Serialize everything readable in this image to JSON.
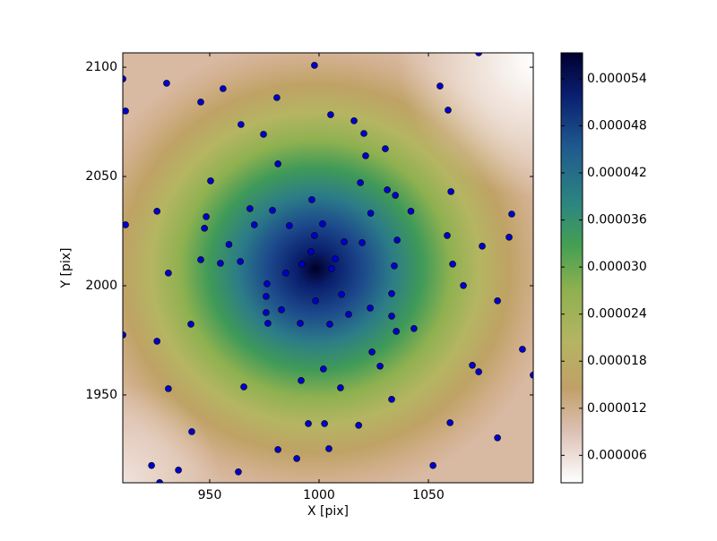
{
  "chart_data": {
    "type": "scatter",
    "xlabel": "X [pix]",
    "ylabel": "Y [pix]",
    "xlim": [
      910.25,
      1097.95
    ],
    "ylim": [
      1909.8,
      2106.6
    ],
    "xticks": [
      950,
      1000,
      1050
    ],
    "yticks": [
      1950,
      2000,
      2050,
      2100
    ],
    "clim": [
      2.5e-06,
      5.73e-05
    ],
    "colorbar_ticks": [
      {
        "value": 6e-06,
        "label": "0.000006"
      },
      {
        "value": 1.2e-05,
        "label": "0.000012"
      },
      {
        "value": 1.8e-05,
        "label": "0.000018"
      },
      {
        "value": 2.4e-05,
        "label": "0.000024"
      },
      {
        "value": 3e-05,
        "label": "0.000030"
      },
      {
        "value": 3.6e-05,
        "label": "0.000036"
      },
      {
        "value": 4.2e-05,
        "label": "0.000042"
      },
      {
        "value": 4.8e-05,
        "label": "0.000048"
      },
      {
        "value": 5.4e-05,
        "label": "0.000054"
      }
    ],
    "series": [
      {
        "color": "#0000cc",
        "x": [
          910.3,
          930.3,
          911.5,
          945.9,
          956.1,
          997.9,
          980.7,
          1073,
          1055.3,
          1059,
          1005.3,
          1016,
          964.3,
          974.6,
          1020.5,
          1030.3,
          1021.3,
          981.2,
          950.4,
          1018.9,
          1031.2,
          1034.9,
          1060.3,
          996.7,
          925.9,
          968.4,
          978.7,
          1023.6,
          1042,
          1088.1,
          948.4,
          911.5,
          970.4,
          986.4,
          1001.6,
          947.6,
          997.9,
          1058.6,
          1086.9,
          958.8,
          1011.5,
          1019.7,
          1035.7,
          1074.6,
          996.3,
          1007.4,
          945.9,
          964,
          954.9,
          1061.1,
          992.2,
          1034.4,
          1005.7,
          931.1,
          984.8,
          976.2,
          1066,
          1010.3,
          975.8,
          1033.2,
          998.4,
          1081.6,
          982.8,
          1023.4,
          975.8,
          1013.5,
          1033.2,
          941.4,
          976.6,
          991.4,
          1004.9,
          1043.4,
          1035.3,
          910.3,
          925.9,
          1093,
          1024.2,
          1070.1,
          1027.9,
          1002,
          1073,
          1097.9,
          991.8,
          1009.8,
          931.1,
          965.6,
          1033.2,
          995.1,
          1002.5,
          1018.1,
          1059.9,
          941.8,
          1081.6,
          981.2,
          1004.5,
          989.8,
          923.4,
          935.7,
          963.1,
          1052.1,
          927.1
        ],
        "values": [
          2094.7,
          2092.7,
          2080,
          2084.1,
          2090.2,
          2100.9,
          2086.1,
          2106.6,
          2091.4,
          2080.4,
          2078.3,
          2075.5,
          2073.8,
          2069.3,
          2069.7,
          2062.7,
          2059.5,
          2055.8,
          2048,
          2047.2,
          2043.9,
          2041.4,
          2043.1,
          2039.4,
          2034.1,
          2035.3,
          2034.5,
          2033.2,
          2034.1,
          2032.8,
          2031.6,
          2027.9,
          2027.9,
          2027.5,
          2028.3,
          2026.3,
          2023,
          2023,
          2022.2,
          2018.9,
          2020.1,
          2019.7,
          2020.9,
          2018.1,
          2015.6,
          2012.3,
          2011.9,
          2011.1,
          2010.3,
          2009.9,
          2009.9,
          2009.1,
          2007.8,
          2005.8,
          2005.8,
          2000.9,
          2000.1,
          1996,
          1995.1,
          1996.4,
          1993.1,
          1993.1,
          1989,
          1989.8,
          1987.7,
          1986.9,
          1986.1,
          1982.4,
          1982.8,
          1982.8,
          1982.4,
          1980.4,
          1979.1,
          1977.5,
          1974.6,
          1970.9,
          1969.7,
          1963.6,
          1963.2,
          1961.9,
          1960.6,
          1959.1,
          1956.6,
          1953.3,
          1952.9,
          1953.7,
          1948,
          1936.9,
          1936.9,
          1936.1,
          1937.3,
          1933.2,
          1930.4,
          1925,
          1925.4,
          1920.9,
          1917.7,
          1915.6,
          1914.8,
          1917.7,
          1909.9
        ]
      }
    ]
  }
}
